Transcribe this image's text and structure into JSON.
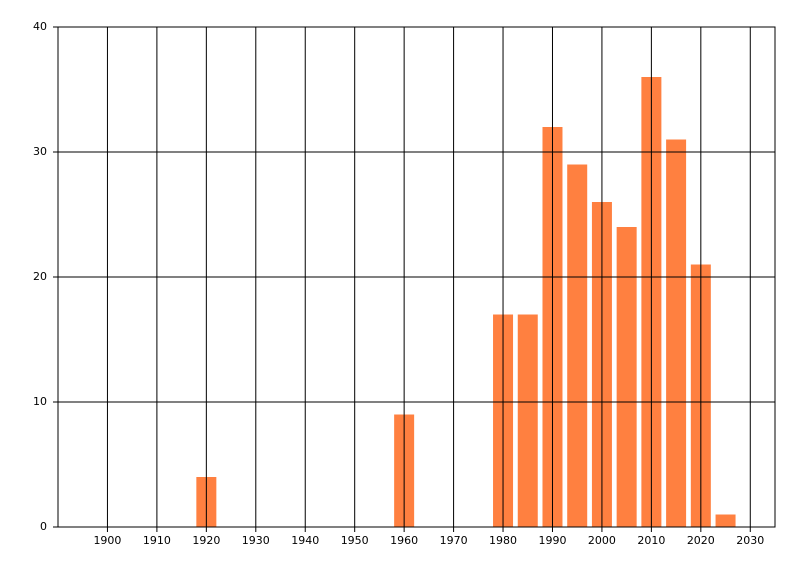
{
  "chart_data": {
    "type": "bar",
    "x": [
      1920,
      1960,
      1980,
      1985,
      1990,
      1995,
      2000,
      2005,
      2010,
      2015,
      2020,
      2025
    ],
    "values": [
      4,
      9,
      17,
      17,
      32,
      29,
      26,
      24,
      36,
      31,
      21,
      1
    ],
    "color": "#ff8040",
    "xlim": [
      1890,
      2035
    ],
    "xticks": [
      1900,
      1910,
      1920,
      1930,
      1940,
      1950,
      1960,
      1970,
      1980,
      1990,
      2000,
      2010,
      2020,
      2030
    ],
    "ylim": [
      0,
      40
    ],
    "yticks": [
      0,
      10,
      20,
      30,
      40
    ],
    "grid": true
  }
}
